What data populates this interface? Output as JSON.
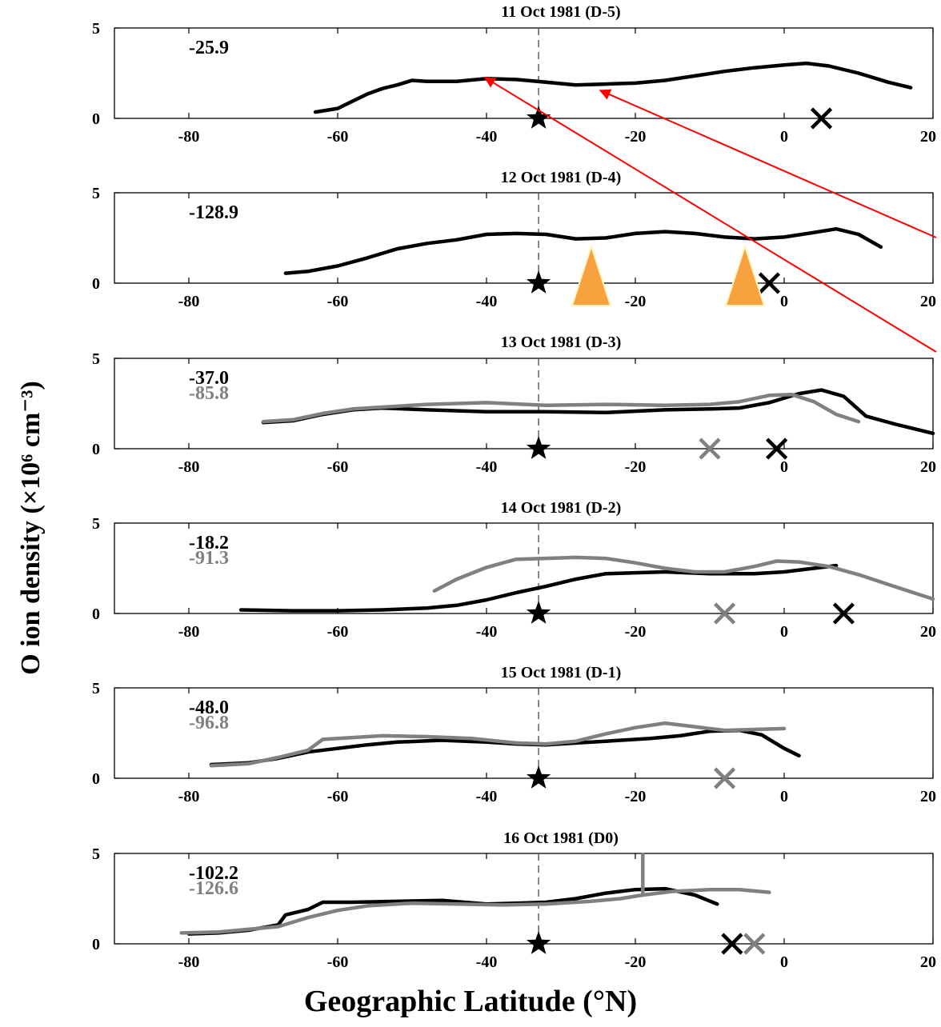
{
  "ylabel": "O ion density (×10⁶ cm⁻³)",
  "xlabel": "Geographic Latitude (°N)",
  "chart_data": [
    {
      "type": "line",
      "title": "11 Oct 1981 (D-5)",
      "xlim": [
        -90,
        20
      ],
      "ylim": [
        0,
        5
      ],
      "xticks": [
        -80,
        -60,
        -40,
        -20,
        0,
        20
      ],
      "yticks": [
        0,
        5
      ],
      "values_text": [
        {
          "text": "-25.9",
          "color": "#000000"
        }
      ],
      "series": [
        {
          "color": "#000000",
          "points": [
            [
              -63,
              0.35
            ],
            [
              -60,
              0.55
            ],
            [
              -58,
              0.95
            ],
            [
              -56,
              1.35
            ],
            [
              -54,
              1.65
            ],
            [
              -52,
              1.85
            ],
            [
              -50,
              2.1
            ],
            [
              -48,
              2.05
            ],
            [
              -44,
              2.05
            ],
            [
              -40,
              2.2
            ],
            [
              -36,
              2.15
            ],
            [
              -32,
              2.0
            ],
            [
              -28,
              1.85
            ],
            [
              -24,
              1.9
            ],
            [
              -20,
              1.95
            ],
            [
              -16,
              2.1
            ],
            [
              -12,
              2.35
            ],
            [
              -8,
              2.6
            ],
            [
              -4,
              2.8
            ],
            [
              0,
              2.95
            ],
            [
              3,
              3.05
            ],
            [
              6,
              2.9
            ],
            [
              10,
              2.5
            ],
            [
              14,
              2.0
            ],
            [
              17,
              1.7
            ]
          ]
        }
      ],
      "star_lat": -33,
      "cross_markers": [
        {
          "lat": 5,
          "color": "#000000"
        }
      ],
      "vline_lat": -33
    },
    {
      "type": "line",
      "title": "12 Oct 1981 (D-4)",
      "xlim": [
        -90,
        20
      ],
      "ylim": [
        0,
        5
      ],
      "xticks": [
        -80,
        -60,
        -40,
        -20,
        0,
        20
      ],
      "yticks": [
        0,
        5
      ],
      "values_text": [
        {
          "text": "-128.9",
          "color": "#000000"
        }
      ],
      "series": [
        {
          "color": "#000000",
          "points": [
            [
              -67,
              0.55
            ],
            [
              -64,
              0.65
            ],
            [
              -60,
              0.95
            ],
            [
              -56,
              1.4
            ],
            [
              -52,
              1.9
            ],
            [
              -48,
              2.2
            ],
            [
              -44,
              2.4
            ],
            [
              -40,
              2.7
            ],
            [
              -36,
              2.75
            ],
            [
              -32,
              2.7
            ],
            [
              -28,
              2.45
            ],
            [
              -24,
              2.5
            ],
            [
              -20,
              2.75
            ],
            [
              -16,
              2.85
            ],
            [
              -12,
              2.75
            ],
            [
              -8,
              2.55
            ],
            [
              -4,
              2.45
            ],
            [
              0,
              2.55
            ],
            [
              4,
              2.8
            ],
            [
              7,
              3.0
            ],
            [
              10,
              2.7
            ],
            [
              13,
              2.0
            ]
          ]
        }
      ],
      "star_lat": -33,
      "cross_markers": [
        {
          "lat": -2,
          "color": "#000000"
        }
      ],
      "vline_lat": -33
    },
    {
      "type": "line",
      "title": "13 Oct 1981 (D-3)",
      "xlim": [
        -90,
        20
      ],
      "ylim": [
        0,
        5
      ],
      "xticks": [
        -80,
        -60,
        -40,
        -20,
        0,
        20
      ],
      "yticks": [
        0,
        5
      ],
      "values_text": [
        {
          "text": "-37.0",
          "color": "#000000"
        },
        {
          "text": "-85.8",
          "color": "#808080"
        }
      ],
      "series": [
        {
          "color": "#000000",
          "points": [
            [
              -70,
              1.45
            ],
            [
              -66,
              1.55
            ],
            [
              -62,
              1.9
            ],
            [
              -58,
              2.15
            ],
            [
              -54,
              2.25
            ],
            [
              -48,
              2.15
            ],
            [
              -40,
              2.05
            ],
            [
              -32,
              2.05
            ],
            [
              -24,
              2.0
            ],
            [
              -16,
              2.15
            ],
            [
              -10,
              2.2
            ],
            [
              -6,
              2.25
            ],
            [
              -2,
              2.55
            ],
            [
              2,
              3.05
            ],
            [
              5,
              3.25
            ],
            [
              8,
              2.9
            ],
            [
              11,
              1.8
            ],
            [
              15,
              1.35
            ],
            [
              20,
              0.85
            ]
          ]
        },
        {
          "color": "#808080",
          "points": [
            [
              -70,
              1.5
            ],
            [
              -66,
              1.6
            ],
            [
              -62,
              1.95
            ],
            [
              -58,
              2.2
            ],
            [
              -54,
              2.3
            ],
            [
              -48,
              2.45
            ],
            [
              -40,
              2.55
            ],
            [
              -32,
              2.4
            ],
            [
              -24,
              2.45
            ],
            [
              -16,
              2.4
            ],
            [
              -10,
              2.45
            ],
            [
              -6,
              2.6
            ],
            [
              -2,
              2.95
            ],
            [
              1,
              3.0
            ],
            [
              4,
              2.6
            ],
            [
              7,
              1.9
            ],
            [
              10,
              1.5
            ]
          ]
        }
      ],
      "star_lat": -33,
      "cross_markers": [
        {
          "lat": -10,
          "color": "#808080"
        },
        {
          "lat": -1,
          "color": "#000000"
        }
      ],
      "vline_lat": -33
    },
    {
      "type": "line",
      "title": "14 Oct 1981 (D-2)",
      "xlim": [
        -90,
        20
      ],
      "ylim": [
        0,
        5
      ],
      "xticks": [
        -80,
        -60,
        -40,
        -20,
        0,
        20
      ],
      "yticks": [
        0,
        5
      ],
      "values_text": [
        {
          "text": "-18.2",
          "color": "#000000"
        },
        {
          "text": "-91.3",
          "color": "#808080"
        }
      ],
      "series": [
        {
          "color": "#000000",
          "points": [
            [
              -73,
              0.2
            ],
            [
              -66,
              0.15
            ],
            [
              -60,
              0.15
            ],
            [
              -54,
              0.2
            ],
            [
              -48,
              0.3
            ],
            [
              -44,
              0.45
            ],
            [
              -40,
              0.75
            ],
            [
              -36,
              1.15
            ],
            [
              -32,
              1.5
            ],
            [
              -28,
              1.9
            ],
            [
              -24,
              2.2
            ],
            [
              -20,
              2.25
            ],
            [
              -16,
              2.3
            ],
            [
              -10,
              2.2
            ],
            [
              -4,
              2.2
            ],
            [
              0,
              2.3
            ],
            [
              4,
              2.5
            ],
            [
              7,
              2.65
            ]
          ]
        },
        {
          "color": "#808080",
          "points": [
            [
              -47,
              1.25
            ],
            [
              -44,
              1.9
            ],
            [
              -40,
              2.55
            ],
            [
              -36,
              3.0
            ],
            [
              -32,
              3.05
            ],
            [
              -28,
              3.1
            ],
            [
              -24,
              3.05
            ],
            [
              -20,
              2.8
            ],
            [
              -16,
              2.5
            ],
            [
              -12,
              2.3
            ],
            [
              -8,
              2.3
            ],
            [
              -4,
              2.6
            ],
            [
              -1,
              2.9
            ],
            [
              2,
              2.85
            ],
            [
              6,
              2.6
            ],
            [
              10,
              2.15
            ],
            [
              14,
              1.6
            ],
            [
              20,
              0.8
            ]
          ]
        }
      ],
      "star_lat": -33,
      "cross_markers": [
        {
          "lat": -8,
          "color": "#808080"
        },
        {
          "lat": 8,
          "color": "#000000"
        }
      ],
      "vline_lat": -33
    },
    {
      "type": "line",
      "title": "15 Oct 1981 (D-1)",
      "xlim": [
        -90,
        20
      ],
      "ylim": [
        0,
        5
      ],
      "xticks": [
        -80,
        -60,
        -40,
        -20,
        0,
        20
      ],
      "yticks": [
        0,
        5
      ],
      "values_text": [
        {
          "text": "-48.0",
          "color": "#000000"
        },
        {
          "text": "-96.8",
          "color": "#808080"
        }
      ],
      "series": [
        {
          "color": "#000000",
          "points": [
            [
              -77,
              0.75
            ],
            [
              -72,
              0.85
            ],
            [
              -68,
              1.1
            ],
            [
              -64,
              1.45
            ],
            [
              -60,
              1.65
            ],
            [
              -56,
              1.85
            ],
            [
              -52,
              2.0
            ],
            [
              -46,
              2.1
            ],
            [
              -40,
              2.0
            ],
            [
              -36,
              1.9
            ],
            [
              -32,
              1.85
            ],
            [
              -28,
              1.95
            ],
            [
              -24,
              2.05
            ],
            [
              -18,
              2.2
            ],
            [
              -14,
              2.35
            ],
            [
              -10,
              2.6
            ],
            [
              -6,
              2.65
            ],
            [
              -3,
              2.4
            ],
            [
              0,
              1.65
            ],
            [
              2,
              1.25
            ]
          ]
        },
        {
          "color": "#808080",
          "points": [
            [
              -77,
              0.7
            ],
            [
              -72,
              0.8
            ],
            [
              -68,
              1.15
            ],
            [
              -64,
              1.55
            ],
            [
              -62,
              2.15
            ],
            [
              -58,
              2.25
            ],
            [
              -54,
              2.35
            ],
            [
              -48,
              2.3
            ],
            [
              -42,
              2.2
            ],
            [
              -36,
              1.95
            ],
            [
              -32,
              1.9
            ],
            [
              -28,
              2.05
            ],
            [
              -24,
              2.45
            ],
            [
              -20,
              2.8
            ],
            [
              -16,
              3.05
            ],
            [
              -12,
              2.85
            ],
            [
              -8,
              2.65
            ],
            [
              -4,
              2.7
            ],
            [
              0,
              2.75
            ]
          ]
        }
      ],
      "star_lat": -33,
      "cross_markers": [
        {
          "lat": -8,
          "color": "#808080"
        }
      ],
      "vline_lat": -33
    },
    {
      "type": "line",
      "title": "16 Oct 1981 (D0)",
      "xlim": [
        -90,
        20
      ],
      "ylim": [
        0,
        5
      ],
      "xticks": [
        -80,
        -60,
        -40,
        -20,
        0,
        20
      ],
      "yticks": [
        0,
        5
      ],
      "values_text": [
        {
          "text": "-102.2",
          "color": "#000000"
        },
        {
          "text": "-126.6",
          "color": "#808080"
        }
      ],
      "series": [
        {
          "color": "#000000",
          "points": [
            [
              -80,
              0.55
            ],
            [
              -76,
              0.6
            ],
            [
              -72,
              0.75
            ],
            [
              -68,
              1.05
            ],
            [
              -67,
              1.6
            ],
            [
              -64,
              1.9
            ],
            [
              -62,
              2.3
            ],
            [
              -58,
              2.3
            ],
            [
              -52,
              2.35
            ],
            [
              -46,
              2.4
            ],
            [
              -40,
              2.2
            ],
            [
              -36,
              2.25
            ],
            [
              -32,
              2.3
            ],
            [
              -28,
              2.5
            ],
            [
              -24,
              2.8
            ],
            [
              -20,
              3.0
            ],
            [
              -16,
              3.05
            ],
            [
              -12,
              2.7
            ],
            [
              -9,
              2.2
            ]
          ]
        },
        {
          "color": "#808080",
          "points": [
            [
              -81,
              0.6
            ],
            [
              -76,
              0.65
            ],
            [
              -72,
              0.8
            ],
            [
              -68,
              0.95
            ],
            [
              -64,
              1.45
            ],
            [
              -60,
              1.85
            ],
            [
              -56,
              2.1
            ],
            [
              -50,
              2.25
            ],
            [
              -44,
              2.2
            ],
            [
              -38,
              2.15
            ],
            [
              -32,
              2.2
            ],
            [
              -26,
              2.35
            ],
            [
              -22,
              2.5
            ],
            [
              -19,
              2.7
            ],
            [
              -19,
              4.95
            ],
            [
              -19,
              2.7
            ],
            [
              -15,
              2.9
            ],
            [
              -10,
              3.0
            ],
            [
              -6,
              3.0
            ],
            [
              -2,
              2.85
            ]
          ]
        }
      ],
      "star_lat": -33,
      "cross_markers": [
        {
          "lat": -7,
          "color": "#000000"
        },
        {
          "lat": -4,
          "color": "#808080"
        }
      ],
      "vline_lat": -33
    }
  ],
  "annotations": {
    "arrow_color": "#ff0000",
    "triangle_color": "#f7a13f"
  }
}
